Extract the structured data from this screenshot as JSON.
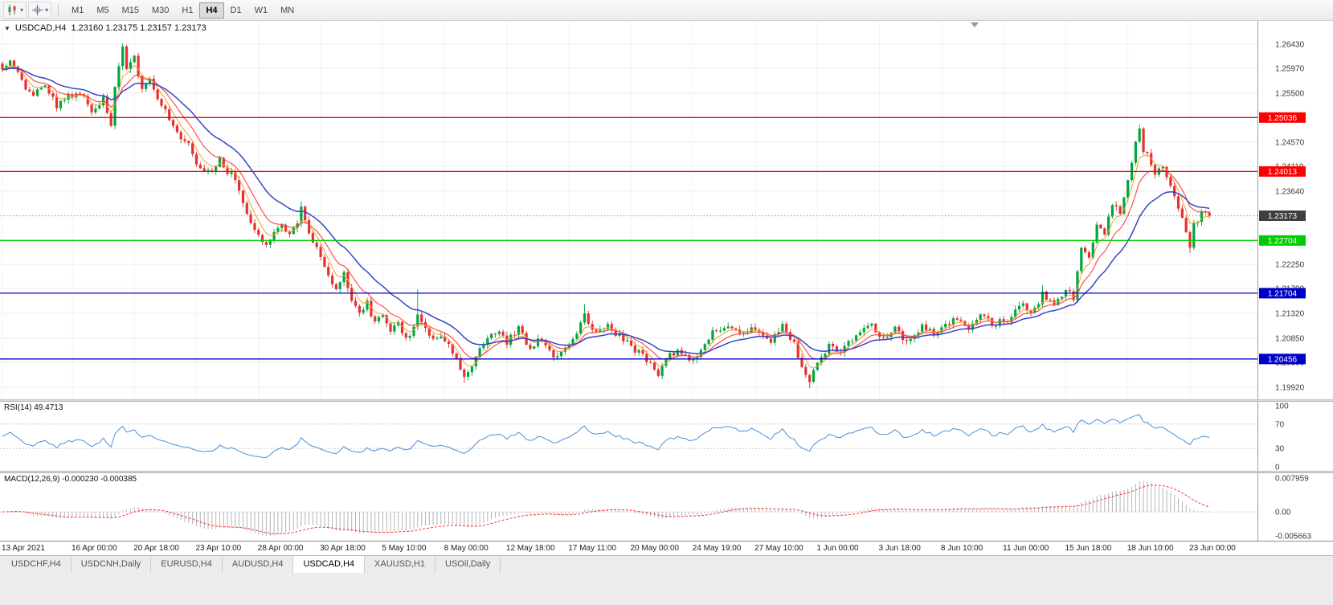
{
  "toolbar": {
    "dropdown_glyph": "▾",
    "timeframes": [
      "M1",
      "M5",
      "M15",
      "M30",
      "H1",
      "H4",
      "D1",
      "W1",
      "MN"
    ],
    "active_timeframe": "H4"
  },
  "header": {
    "collapse_glyph": "▼",
    "symbol": "USDCAD,H4",
    "quotes": "1.23160 1.23175 1.23157 1.23173"
  },
  "price_scale": {
    "ticks": [
      1.2643,
      1.2597,
      1.255,
      1.2504,
      1.2457,
      1.2411,
      1.2364,
      1.2317,
      1.2271,
      1.2225,
      1.2179,
      1.2132,
      1.2085,
      1.2039,
      1.1992
    ]
  },
  "levels": [
    {
      "label": "1.25036",
      "value": 1.25036,
      "color": "#ff0000",
      "type": "resistance"
    },
    {
      "label": "1.24013",
      "value": 1.24013,
      "color": "#ff0000",
      "type": "resistance"
    },
    {
      "label": "1.23173",
      "value": 1.23173,
      "color": "#3f3f3f",
      "type": "current-price"
    },
    {
      "label": "1.22704",
      "value": 1.22704,
      "color": "#00cc00",
      "type": "support"
    },
    {
      "label": "1.21704",
      "value": 1.21704,
      "color": "#0000c8",
      "type": "support"
    },
    {
      "label": "1.20456",
      "value": 1.20456,
      "color": "#0000c8",
      "type": "support"
    }
  ],
  "time_axis": {
    "labels": [
      {
        "text": "13 Apr 2021",
        "bar": 0
      },
      {
        "text": "16 Apr 00:00",
        "bar": 18
      },
      {
        "text": "20 Apr 18:00",
        "bar": 34
      },
      {
        "text": "23 Apr 10:00",
        "bar": 50
      },
      {
        "text": "28 Apr 00:00",
        "bar": 66
      },
      {
        "text": "30 Apr 18:00",
        "bar": 82
      },
      {
        "text": "5 May 10:00",
        "bar": 98
      },
      {
        "text": "8 May 00:00",
        "bar": 114
      },
      {
        "text": "12 May 18:00",
        "bar": 130
      },
      {
        "text": "17 May 11:00",
        "bar": 146
      },
      {
        "text": "20 May 00:00",
        "bar": 162
      },
      {
        "text": "24 May 19:00",
        "bar": 178
      },
      {
        "text": "27 May 10:00",
        "bar": 194
      },
      {
        "text": "1 Jun 00:00",
        "bar": 210
      },
      {
        "text": "3 Jun 18:00",
        "bar": 226
      },
      {
        "text": "8 Jun 10:00",
        "bar": 242
      },
      {
        "text": "11 Jun 00:00",
        "bar": 258
      },
      {
        "text": "15 Jun 18:00",
        "bar": 274
      },
      {
        "text": "18 Jun 10:00",
        "bar": 290
      },
      {
        "text": "23 Jun 00:00",
        "bar": 306
      }
    ]
  },
  "rsi": {
    "label": "RSI(14) 49.4713",
    "current": 49.4713,
    "levels": [
      70,
      30
    ],
    "scale": [
      "100",
      "70",
      "30",
      "0"
    ]
  },
  "macd": {
    "label": "MACD(12,26,9) -0.000230 -0.000385",
    "macd_value": -0.00023,
    "signal_value": -0.000385,
    "scale_max": 0.007959,
    "scale_min": -0.005663,
    "scale_labels": [
      "0.007959",
      "0.00",
      "-0.005663"
    ]
  },
  "tabs": {
    "items": [
      "USDCHF,H4",
      "USDCNH,Daily",
      "EURUSD,H4",
      "AUDUSD,H4",
      "USDCAD,H4",
      "XAUUSD,H1",
      "USOil,Daily"
    ],
    "active": "USDCAD,H4"
  },
  "chart_data": {
    "type": "candlestick",
    "symbol": "USDCAD",
    "timeframe": "H4",
    "ohlc_current": {
      "open": 1.2316,
      "high": 1.23175,
      "low": 1.23157,
      "close": 1.23173
    },
    "current_price": 1.23173,
    "n_bars": 312,
    "price_range": {
      "top": 1.2687,
      "bottom": 1.1969
    },
    "price_path": [
      [
        0,
        1.2601
      ],
      [
        2,
        1.2614
      ],
      [
        5,
        1.257
      ],
      [
        8,
        1.2545
      ],
      [
        11,
        1.2562
      ],
      [
        14,
        1.2526
      ],
      [
        17,
        1.2543
      ],
      [
        20,
        1.2554
      ],
      [
        23,
        1.2508
      ],
      [
        26,
        1.2545
      ],
      [
        28,
        1.249
      ],
      [
        29,
        1.256
      ],
      [
        31,
        1.264
      ],
      [
        32,
        1.259
      ],
      [
        34,
        1.2618
      ],
      [
        36,
        1.256
      ],
      [
        38,
        1.2582
      ],
      [
        40,
        1.254
      ],
      [
        42,
        1.252
      ],
      [
        44,
        1.249
      ],
      [
        46,
        1.2463
      ],
      [
        48,
        1.245
      ],
      [
        50,
        1.242
      ],
      [
        52,
        1.2405
      ],
      [
        54,
        1.2398
      ],
      [
        56,
        1.2422
      ],
      [
        58,
        1.24
      ],
      [
        60,
        1.239
      ],
      [
        62,
        1.234
      ],
      [
        64,
        1.23
      ],
      [
        66,
        1.2278
      ],
      [
        68,
        1.2262
      ],
      [
        70,
        1.2288
      ],
      [
        72,
        1.2302
      ],
      [
        74,
        1.2282
      ],
      [
        76,
        1.2302
      ],
      [
        77,
        1.2335
      ],
      [
        78,
        1.2308
      ],
      [
        80,
        1.227
      ],
      [
        82,
        1.2238
      ],
      [
        84,
        1.2198
      ],
      [
        86,
        1.2182
      ],
      [
        88,
        1.2205
      ],
      [
        90,
        1.2158
      ],
      [
        92,
        1.2132
      ],
      [
        94,
        1.2152
      ],
      [
        96,
        1.2112
      ],
      [
        98,
        1.2132
      ],
      [
        100,
        1.2094
      ],
      [
        102,
        1.2114
      ],
      [
        104,
        1.2086
      ],
      [
        106,
        1.2102
      ],
      [
        107,
        1.2128
      ],
      [
        109,
        1.2104
      ],
      [
        111,
        1.2084
      ],
      [
        113,
        1.2094
      ],
      [
        115,
        1.207
      ],
      [
        117,
        1.2048
      ],
      [
        119,
        1.2012
      ],
      [
        121,
        1.2034
      ],
      [
        123,
        1.2064
      ],
      [
        125,
        1.2082
      ],
      [
        127,
        1.2098
      ],
      [
        130,
        1.2078
      ],
      [
        133,
        1.2102
      ],
      [
        136,
        1.2062
      ],
      [
        139,
        1.2088
      ],
      [
        142,
        1.2042
      ],
      [
        145,
        1.2068
      ],
      [
        148,
        1.2092
      ],
      [
        150,
        1.2128
      ],
      [
        152,
        1.2096
      ],
      [
        156,
        1.2108
      ],
      [
        160,
        1.2082
      ],
      [
        164,
        1.2058
      ],
      [
        167,
        1.204
      ],
      [
        169,
        1.2015
      ],
      [
        171,
        1.2048
      ],
      [
        174,
        1.2062
      ],
      [
        177,
        1.204
      ],
      [
        180,
        1.206
      ],
      [
        183,
        1.2095
      ],
      [
        187,
        1.2112
      ],
      [
        190,
        1.2088
      ],
      [
        194,
        1.2106
      ],
      [
        198,
        1.2082
      ],
      [
        201,
        1.2112
      ],
      [
        204,
        1.2072
      ],
      [
        206,
        1.2032
      ],
      [
        208,
        1.2
      ],
      [
        210,
        1.2038
      ],
      [
        213,
        1.2072
      ],
      [
        216,
        1.2058
      ],
      [
        220,
        1.2092
      ],
      [
        224,
        1.2112
      ],
      [
        227,
        1.2082
      ],
      [
        230,
        1.2102
      ],
      [
        233,
        1.2078
      ],
      [
        237,
        1.2106
      ],
      [
        241,
        1.2092
      ],
      [
        245,
        1.2122
      ],
      [
        249,
        1.2102
      ],
      [
        252,
        1.2132
      ],
      [
        255,
        1.2112
      ],
      [
        259,
        1.2118
      ],
      [
        262,
        1.2152
      ],
      [
        265,
        1.2132
      ],
      [
        268,
        1.2167
      ],
      [
        271,
        1.2148
      ],
      [
        274,
        1.2178
      ],
      [
        276,
        1.2162
      ],
      [
        278,
        1.2258
      ],
      [
        280,
        1.2242
      ],
      [
        282,
        1.23
      ],
      [
        284,
        1.2282
      ],
      [
        286,
        1.2342
      ],
      [
        288,
        1.2322
      ],
      [
        290,
        1.2385
      ],
      [
        292,
        1.2462
      ],
      [
        293,
        1.2478
      ],
      [
        294,
        1.2442
      ],
      [
        295,
        1.243
      ],
      [
        297,
        1.2392
      ],
      [
        299,
        1.2415
      ],
      [
        301,
        1.2372
      ],
      [
        303,
        1.2332
      ],
      [
        305,
        1.2292
      ],
      [
        306,
        1.2262
      ],
      [
        307,
        1.2302
      ],
      [
        309,
        1.2322
      ],
      [
        311,
        1.23173
      ]
    ],
    "wick_events": [
      {
        "bar": 31,
        "dir": "up",
        "size": 0.0006
      },
      {
        "bar": 77,
        "dir": "up",
        "size": 0.001
      },
      {
        "bar": 107,
        "dir": "up",
        "size": 0.0048
      },
      {
        "bar": 119,
        "dir": "down",
        "size": 0.0012
      },
      {
        "bar": 150,
        "dir": "up",
        "size": 0.0018
      },
      {
        "bar": 208,
        "dir": "down",
        "size": 0.0012
      },
      {
        "bar": 268,
        "dir": "up",
        "size": 0.0012
      },
      {
        "bar": 293,
        "dir": "up",
        "size": 0.0008
      },
      {
        "bar": 306,
        "dir": "down",
        "size": 0.001
      }
    ],
    "ma_periods": {
      "fast": 5,
      "mid": 10,
      "slow": 21
    },
    "colors": {
      "bull": "#00a63e",
      "bear": "#e53030",
      "ma_fast": "#f0a030",
      "ma_mid": "#ff4040",
      "ma_slow": "#3646c8",
      "rsi": "#4a90d9",
      "macd_hist": "#b4b4b4",
      "macd_signal": "#ff3333",
      "level_red": "#ff0000",
      "level_green": "#00cc00",
      "level_blue": "#0000c8"
    }
  }
}
